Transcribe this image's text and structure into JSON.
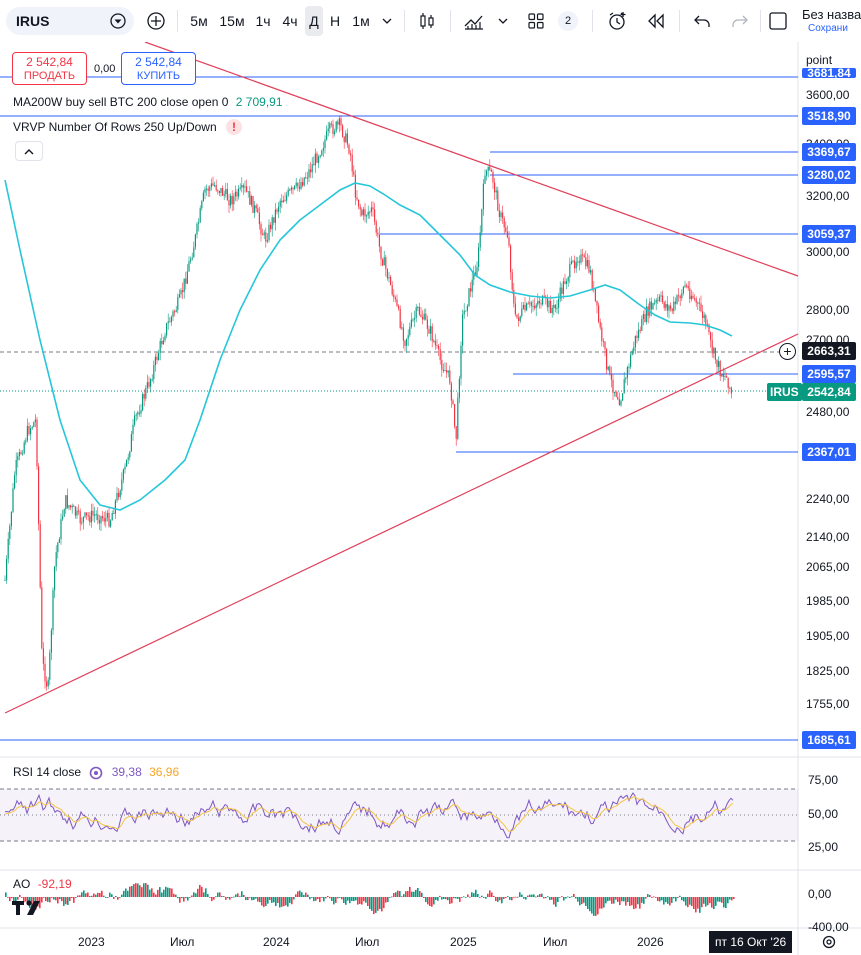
{
  "toolbar": {
    "symbol": "IRUS",
    "intervals": [
      "5м",
      "15м",
      "1ч",
      "4ч",
      "Д",
      "Н",
      "1м"
    ],
    "active_interval": "Д",
    "alerts_count": "2",
    "chart_name": "Без назва",
    "save_label": "Сохрани"
  },
  "trade": {
    "sell_price": "2 542,84",
    "sell_label": "ПРОДАТЬ",
    "spread": "0,00",
    "buy_price": "2 542,84",
    "buy_label": "КУПИТЬ"
  },
  "indicators": {
    "ma_label": "MA200W buy sell BTC 200 close open 0",
    "ma_value": "2 709,91",
    "vrvp_label": "VRVP Number Of Rows 250 Up/Down",
    "rsi_label": "RSI 14 close",
    "rsi_value": "39,38",
    "rsi_ma_value": "36,96",
    "ao_label": "AO",
    "ao_value": "-92,19"
  },
  "price_axis": {
    "unit_label": "point",
    "top_cut_label": "3681,84",
    "ticks": [
      "3600,00",
      "3400,00",
      "3200,00",
      "3000,00",
      "2800,00",
      "2700,00",
      "2480,00",
      "2240,00",
      "2140,00",
      "2065,00",
      "1985,00",
      "1905,00",
      "1825,00",
      "1755,00"
    ],
    "hline_labels": [
      "3518,90",
      "3369,67",
      "3280,02",
      "3059,37",
      "2595,57",
      "2367,01",
      "1685,61"
    ],
    "crosshair_label": "2663,31",
    "last_symbol": "IRUS",
    "last_price": "2542,84"
  },
  "rsi_axis": {
    "ticks": [
      "75,00",
      "50,00",
      "25,00"
    ]
  },
  "ao_axis": {
    "ticks": [
      "0,00",
      "-400,00"
    ]
  },
  "time_axis": {
    "ticks": [
      "2023",
      "Июл",
      "2024",
      "Июл",
      "2025",
      "Июл",
      "2026"
    ],
    "cursor_date": "пт 16 Окт '26"
  },
  "colors": {
    "up": "#089981",
    "down": "#f23645",
    "ma": "#26c6da",
    "hline": "#2962ff",
    "trend": "#e0405a",
    "rsi": "#7e57c2",
    "rsi_ma": "#f5c342"
  }
}
